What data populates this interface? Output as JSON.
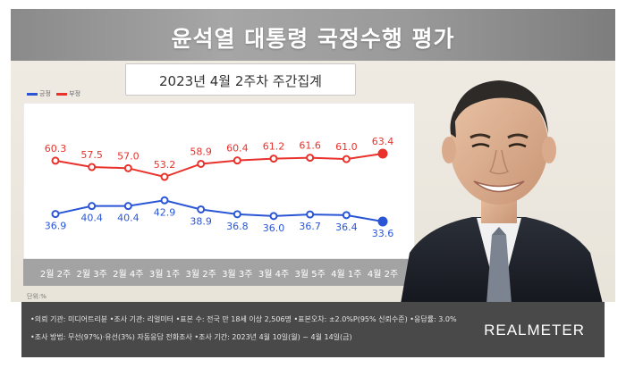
{
  "title": "윤석열 대통령 국정수행 평가",
  "subtitle": "2023년 4월 2주차 주간집계",
  "legend": {
    "approve": "긍정",
    "disapprove": "부정"
  },
  "unit_label": "단위:%",
  "footer": {
    "line1": "•의뢰 기관: 미디어트리뷴 •조사 기관: 리얼미터 •표본 수: 전국 만 18세 이상 2,506명 •표본오차: ±2.0%P(95% 신뢰수준) •응답률: 3.0%",
    "line2": "•조사 방법: 무선(97%)·유선(3%) 자동응답 전화조사 •조사 기간: 2023년 4월 10일(월) ~ 4월 14일(금)",
    "brand": "REALMETER"
  },
  "colors": {
    "disapprove": "#e8322b",
    "approve": "#2a56d6"
  },
  "chart_data": {
    "type": "line",
    "categories": [
      "2월 2주",
      "2월 3주",
      "2월 4주",
      "3월 1주",
      "3월 2주",
      "3월 3주",
      "3월 4주",
      "3월 5주",
      "4월 1주",
      "4월 2주"
    ],
    "series": [
      {
        "name": "부정",
        "values": [
          60.3,
          57.5,
          57.0,
          53.2,
          58.9,
          60.4,
          61.2,
          61.6,
          61.0,
          63.4
        ]
      },
      {
        "name": "긍정",
        "values": [
          36.9,
          40.4,
          40.4,
          42.9,
          38.9,
          36.8,
          36.0,
          36.7,
          36.4,
          33.6
        ]
      }
    ],
    "value_labels": [
      [
        "60.3",
        "57.5",
        "57.0",
        "53.2",
        "58.9",
        "60.4",
        "61.2",
        "61.6",
        "61.0",
        "63.4"
      ],
      [
        "36.9",
        "40.4",
        "40.4",
        "42.9",
        "38.9",
        "36.8",
        "36.0",
        "36.7",
        "36.4",
        "33.6"
      ]
    ],
    "grid": false,
    "legend_position": "top-left"
  }
}
